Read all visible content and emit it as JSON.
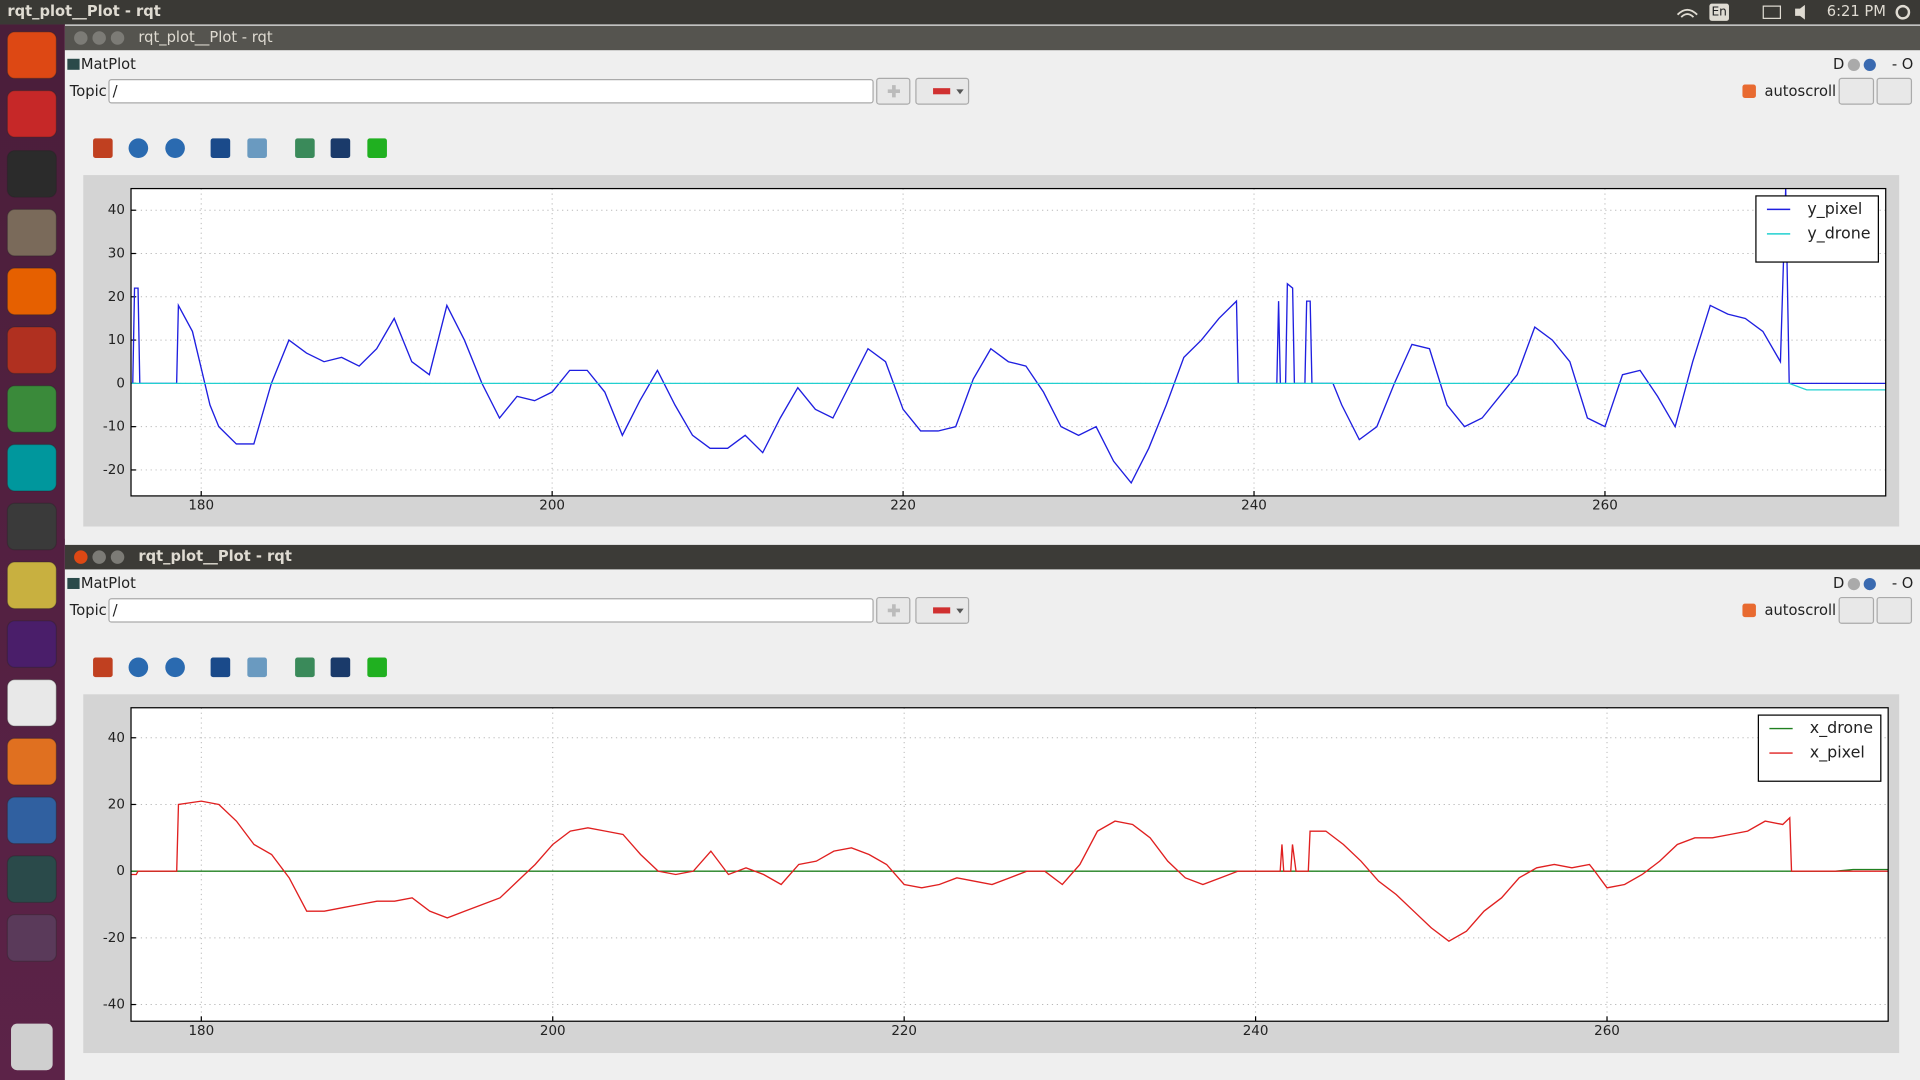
{
  "top_bar": {
    "title": "rqt_plot__Plot - rqt",
    "lang": "En",
    "time": "6:21 PM"
  },
  "windows": [
    {
      "title": "rqt_plot__Plot - rqt",
      "plugin": "MatPlot",
      "topic_label": "Topic",
      "topic_value": "/",
      "autoscroll": "autoscroll",
      "corner_d": "D",
      "corner_o": "- O",
      "chart": {
        "type": "line",
        "xlim": [
          176,
          276
        ],
        "ylim": [
          -26,
          45
        ],
        "xticks": [
          180,
          200,
          220,
          240,
          260
        ],
        "yticks": [
          -20,
          -10,
          0,
          10,
          20,
          30,
          40
        ],
        "grid": true,
        "legend": "upper right",
        "series": [
          {
            "name": "y_pixel",
            "color": "#1f1fe0",
            "x": [
              176.1,
              176.2,
              176.4,
              176.5,
              178.6,
              178.7,
              179.5,
              180.5,
              181,
              182,
              183,
              184,
              185,
              186,
              187,
              188,
              189,
              190,
              191,
              192,
              193,
              194,
              195,
              196,
              197,
              198,
              199,
              200,
              201,
              202,
              203,
              204,
              205,
              206,
              207,
              208,
              209,
              210,
              211,
              212,
              213,
              214,
              215,
              216,
              217,
              218,
              219,
              220,
              221,
              222,
              223,
              224,
              225,
              226,
              227,
              228,
              229,
              230,
              231,
              232,
              233,
              234,
              235,
              236,
              237,
              238,
              239,
              239.1,
              241.3,
              241.4,
              241.5,
              241.8,
              241.9,
              242.2,
              242.3,
              242.9,
              243,
              243.2,
              243.3,
              244.5,
              245,
              246,
              247,
              248,
              249,
              250,
              251,
              252,
              253,
              254,
              255,
              256,
              257,
              258,
              259,
              260,
              261,
              262,
              263,
              264,
              265,
              266,
              267,
              268,
              269,
              270,
              270.3,
              270.5,
              276
            ],
            "values": [
              0,
              22,
              22,
              0,
              0,
              18,
              12,
              -5,
              -10,
              -14,
              -14,
              0,
              10,
              7,
              5,
              6,
              4,
              8,
              15,
              5,
              2,
              18,
              10,
              0,
              -8,
              -3,
              -4,
              -2,
              3,
              3,
              -2,
              -12,
              -4,
              3,
              -5,
              -12,
              -15,
              -15,
              -12,
              -16,
              -8,
              -1,
              -6,
              -8,
              0,
              8,
              5,
              -6,
              -11,
              -11,
              -10,
              1,
              8,
              5,
              4,
              -2,
              -10,
              -12,
              -10,
              -18,
              -23,
              -15,
              -5,
              6,
              10,
              15,
              19,
              0,
              0,
              19,
              0,
              0,
              23,
              22,
              0,
              0,
              19,
              19,
              0,
              0,
              -5,
              -13,
              -10,
              0,
              9,
              8,
              -5,
              -10,
              -8,
              -3,
              2,
              13,
              10,
              5,
              -8,
              -10,
              2,
              3,
              -3,
              -10,
              5,
              18,
              16,
              15,
              12,
              5,
              45,
              0,
              0
            ]
          },
          {
            "name": "y_drone",
            "color": "#22d0d0",
            "x": [
              176,
              270.5,
              271.5,
              276
            ],
            "values": [
              0,
              0,
              -1.5,
              -1.5
            ]
          }
        ]
      }
    },
    {
      "title": "rqt_plot__Plot - rqt",
      "plugin": "MatPlot",
      "topic_label": "Topic",
      "topic_value": "/",
      "autoscroll": "autoscroll",
      "corner_d": "D",
      "corner_o": "- O",
      "chart": {
        "type": "line",
        "xlim": [
          176,
          276
        ],
        "ylim": [
          -45,
          49
        ],
        "xticks": [
          180,
          200,
          220,
          240,
          260
        ],
        "yticks": [
          -40,
          -20,
          0,
          20,
          40
        ],
        "grid": true,
        "legend": "upper right",
        "series": [
          {
            "name": "x_drone",
            "color": "#208020",
            "x": [
              176,
              273,
              274,
              276
            ],
            "values": [
              0,
              0,
              0.5,
              0.5
            ]
          },
          {
            "name": "x_pixel",
            "color": "#e02020",
            "x": [
              176,
              176.3,
              176.4,
              178.6,
              178.7,
              180,
              181,
              182,
              183,
              184,
              185,
              186,
              187,
              188,
              189,
              190,
              191,
              192,
              193,
              194,
              195,
              196,
              197,
              198,
              199,
              200,
              201,
              202,
              203,
              204,
              205,
              206,
              207,
              208,
              209,
              210,
              211,
              212,
              213,
              214,
              215,
              216,
              217,
              218,
              219,
              220,
              221,
              222,
              223,
              224,
              225,
              226,
              227,
              228,
              229,
              230,
              231,
              232,
              233,
              234,
              235,
              236,
              237,
              238,
              239,
              239.1,
              240,
              241.4,
              241.5,
              241.6,
              242,
              242.1,
              242.3,
              243,
              243.1,
              244,
              245,
              246,
              247,
              248,
              249,
              250,
              251,
              252,
              253,
              254,
              255,
              256,
              257,
              258,
              259,
              259.3,
              260,
              261,
              262,
              263,
              264,
              265,
              266,
              267,
              268,
              269,
              270,
              270.4,
              270.5,
              276
            ],
            "values": [
              -1,
              -1,
              0,
              0,
              20,
              21,
              20,
              15,
              8,
              5,
              -2,
              -12,
              -12,
              -11,
              -10,
              -9,
              -9,
              -8,
              -12,
              -14,
              -12,
              -10,
              -8,
              -3,
              2,
              8,
              12,
              13,
              12,
              11,
              5,
              0,
              -1,
              0,
              6,
              -1,
              1,
              -1,
              -4,
              2,
              3,
              6,
              7,
              5,
              2,
              -4,
              -5,
              -4,
              -2,
              -3,
              -4,
              -2,
              0,
              0,
              -4,
              2,
              12,
              15,
              14,
              10,
              3,
              -2,
              -4,
              -2,
              0,
              0,
              0,
              0,
              8,
              0,
              0,
              8,
              0,
              0,
              12,
              12,
              8,
              3,
              -3,
              -7,
              -12,
              -17,
              -21,
              -18,
              -12,
              -8,
              -2,
              1,
              2,
              1,
              2,
              0,
              -5,
              -4,
              -1,
              3,
              8,
              10,
              10,
              11,
              12,
              15,
              14,
              16,
              0,
              0
            ]
          }
        ]
      }
    }
  ]
}
